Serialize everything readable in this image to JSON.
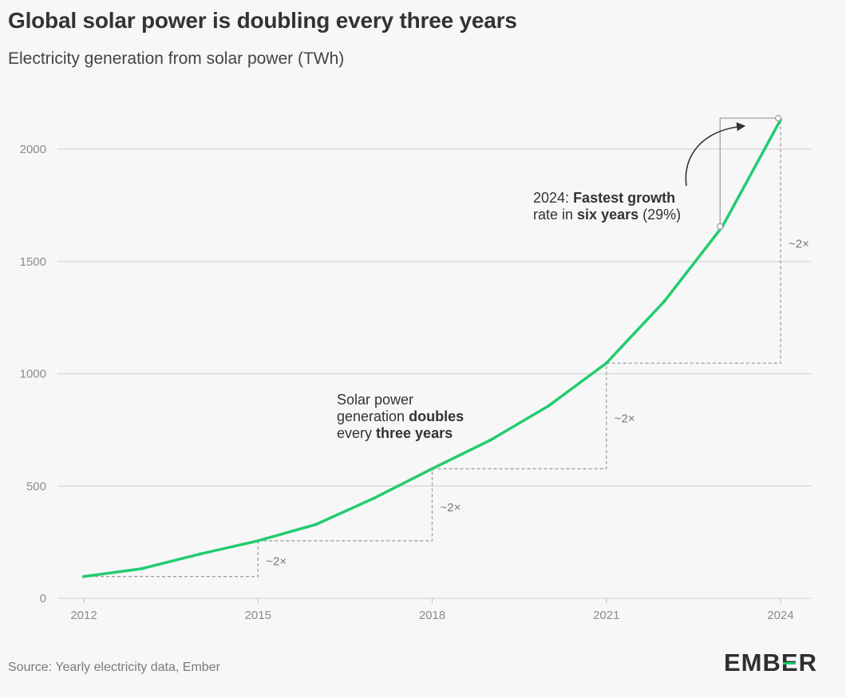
{
  "header": {
    "title": "Global solar power is doubling every three years",
    "subtitle": "Electricity generation from solar power (TWh)"
  },
  "footer": {
    "source": "Source: Yearly electricity data, Ember",
    "logo": "EMBER"
  },
  "colors": {
    "line": "#22cc6f",
    "grid": "#d6d6d6",
    "annotation": "#a0a0a0",
    "text": "#333333"
  },
  "annotations": {
    "growth": {
      "year": "2024:",
      "bold1": "Fastest growth",
      "text2": "rate in",
      "bold2": "six years",
      "text3": "(29%)"
    },
    "doubling": {
      "line1": "Solar power",
      "line2_text": "generation",
      "line2_bold": "doubles",
      "line3_text": "every",
      "line3_bold": "three years"
    },
    "multipliers": [
      "~2×",
      "~2×",
      "~2×",
      "~2×"
    ]
  },
  "chart_data": {
    "type": "line",
    "title": "Global solar power is doubling every three years",
    "subtitle": "Electricity generation from solar power (TWh)",
    "x": [
      2012,
      2013,
      2014,
      2015,
      2016,
      2017,
      2018,
      2019,
      2020,
      2021,
      2022,
      2023,
      2024
    ],
    "series": [
      {
        "values": [
          97,
          132,
          197,
          256,
          329,
          446,
          577,
          704,
          856,
          1047,
          1323,
          1656,
          2131
        ]
      }
    ],
    "xticks": [
      "2012",
      "2015",
      "2018",
      "2021",
      "2024"
    ],
    "yticks": [
      "0",
      "500",
      "1000",
      "1500",
      "2000"
    ],
    "xlim": [
      2012,
      2024
    ],
    "ylim": [
      0,
      2000
    ],
    "grid": "horizontal",
    "legend": "none"
  }
}
